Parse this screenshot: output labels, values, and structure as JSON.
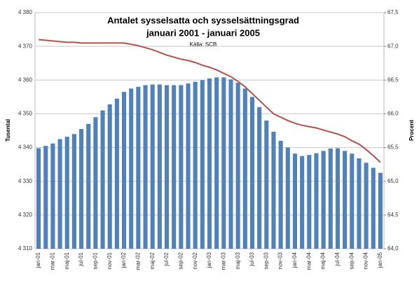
{
  "chart_data": {
    "type": "bar_line",
    "title": "Antalet sysselsatta  och sysselsättningsgrad",
    "subtitle": "januari 2001 - januari 2005",
    "source": "Källa: SCB",
    "y_label": "Tusental",
    "y2_label": "Procent",
    "categories": [
      "jan-01",
      null,
      "mar-01",
      null,
      "maj-01",
      null,
      "jul-01",
      null,
      "sep-01",
      null,
      "nov-01",
      null,
      "jan-02",
      null,
      "mar-02",
      null,
      "maj-02",
      null,
      "jul-02",
      null,
      "sep-02",
      null,
      "nov-02",
      null,
      "jan-03",
      null,
      "mar-03",
      null,
      "maj-03",
      null,
      "jul-03",
      null,
      "sep-03",
      null,
      "nov-03",
      null,
      "jan-04",
      null,
      "mar-04",
      null,
      "maj-04",
      null,
      "jul-04",
      null,
      "sep-04",
      null,
      "nov-04",
      null,
      "jan-05"
    ],
    "series": [
      {
        "type": "bar",
        "color": "#4f81bd",
        "axis": "y",
        "values": [
          4339.8,
          4340.5,
          4341.2,
          4342.5,
          4343.2,
          4344,
          4345.5,
          4347,
          4349,
          4351,
          4352.8,
          4354.5,
          4356.5,
          4357.5,
          4358,
          4358.5,
          4358.7,
          4358.7,
          4358.5,
          4358.5,
          4358.5,
          4359,
          4359.5,
          4360,
          4360.5,
          4360.8,
          4360.8,
          4360.2,
          4359.2,
          4357.5,
          4355,
          4352,
          4348,
          4344.7,
          4342,
          4340,
          4338.2,
          4337.5,
          4337.8,
          4338.3,
          4339,
          4339.7,
          4339.8,
          4339,
          4338.2,
          4336.8,
          4335.5,
          4334,
          4332.5
        ]
      },
      {
        "type": "line",
        "color": "#b4504d",
        "axis": "y2",
        "values": [
          67.1,
          67.09,
          67.08,
          67.07,
          67.06,
          67.06,
          67.05,
          67.05,
          67.05,
          67.05,
          67.05,
          67.05,
          67.05,
          67.03,
          67.01,
          66.98,
          66.95,
          66.91,
          66.87,
          66.84,
          66.81,
          66.79,
          66.76,
          66.72,
          66.69,
          66.65,
          66.6,
          66.55,
          66.48,
          66.4,
          66.3,
          66.2,
          66.1,
          66.0,
          65.95,
          65.9,
          65.86,
          65.83,
          65.81,
          65.79,
          65.76,
          65.73,
          65.7,
          65.66,
          65.6,
          65.55,
          65.47,
          65.38,
          65.28
        ]
      }
    ],
    "ylim": [
      4310,
      4380
    ],
    "yticks": [
      {
        "value": 4310,
        "label": "4 310"
      },
      {
        "value": 4320,
        "label": "4 320"
      },
      {
        "value": 4330,
        "label": "4 330"
      },
      {
        "value": 4340,
        "label": "4 340"
      },
      {
        "value": 4350,
        "label": "4 350"
      },
      {
        "value": 4360,
        "label": "4 360"
      },
      {
        "value": 4370,
        "label": "4 370"
      },
      {
        "value": 4380,
        "label": "4 380"
      }
    ],
    "y2lim": [
      64.0,
      67.5
    ],
    "y2ticks": [
      {
        "value": 64.0,
        "label": "64,0"
      },
      {
        "value": 64.5,
        "label": "64,5"
      },
      {
        "value": 65.0,
        "label": "65,0"
      },
      {
        "value": 65.5,
        "label": "65,5"
      },
      {
        "value": 66.0,
        "label": "66,0"
      },
      {
        "value": 66.5,
        "label": "66,5"
      },
      {
        "value": 67.0,
        "label": "67,0"
      },
      {
        "value": 67.5,
        "label": "67,5"
      }
    ],
    "grid": true
  }
}
